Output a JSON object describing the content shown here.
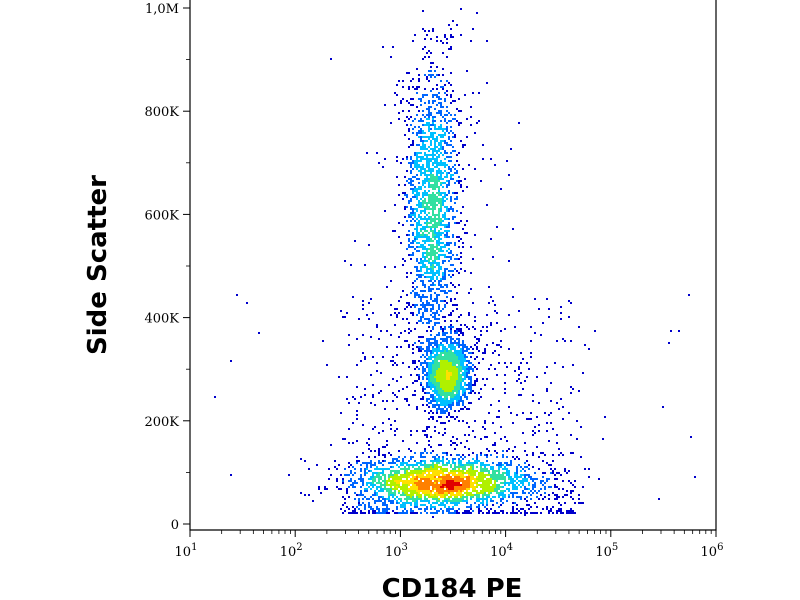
{
  "chart_data": {
    "type": "scatter",
    "subtype": "flow-cytometry density dot plot",
    "title": "",
    "xlabel": "CD184 PE",
    "ylabel": "Side Scatter",
    "x_scale": "log",
    "y_scale": "linear",
    "xlim": [
      10,
      1000000
    ],
    "ylim": [
      0,
      1000000
    ],
    "x_ticks": [
      {
        "value": 10,
        "base": "10",
        "exp": "1"
      },
      {
        "value": 100,
        "base": "10",
        "exp": "2"
      },
      {
        "value": 1000,
        "base": "10",
        "exp": "3"
      },
      {
        "value": 10000,
        "base": "10",
        "exp": "4"
      },
      {
        "value": 100000,
        "base": "10",
        "exp": "5"
      },
      {
        "value": 1000000,
        "base": "10",
        "exp": "6"
      }
    ],
    "y_ticks": [
      {
        "value": 0,
        "label": "0"
      },
      {
        "value": 200000,
        "label": "200K"
      },
      {
        "value": 400000,
        "label": "400K"
      },
      {
        "value": 600000,
        "label": "600K"
      },
      {
        "value": 800000,
        "label": "800K"
      },
      {
        "value": 1000000,
        "label": "1,0M"
      }
    ],
    "grid": false,
    "legend": "none",
    "color_scale": [
      "#0000cc",
      "#0066ff",
      "#00c0ff",
      "#33e0a0",
      "#b0f000",
      "#ffe000",
      "#ff8000",
      "#e00000"
    ],
    "populations": [
      {
        "x_center": 2500,
        "y_center": 80000,
        "x_spread_log": 0.42,
        "y_spread": 22000,
        "share": 0.45,
        "density": "highest"
      },
      {
        "x_center": 2000,
        "y_center": 620000,
        "x_spread_log": 0.13,
        "y_spread": 130000,
        "share": 0.32,
        "density": "medium"
      },
      {
        "x_center": 2800,
        "y_center": 290000,
        "x_spread_log": 0.11,
        "y_spread": 35000,
        "share": 0.13,
        "density": "low"
      }
    ]
  }
}
